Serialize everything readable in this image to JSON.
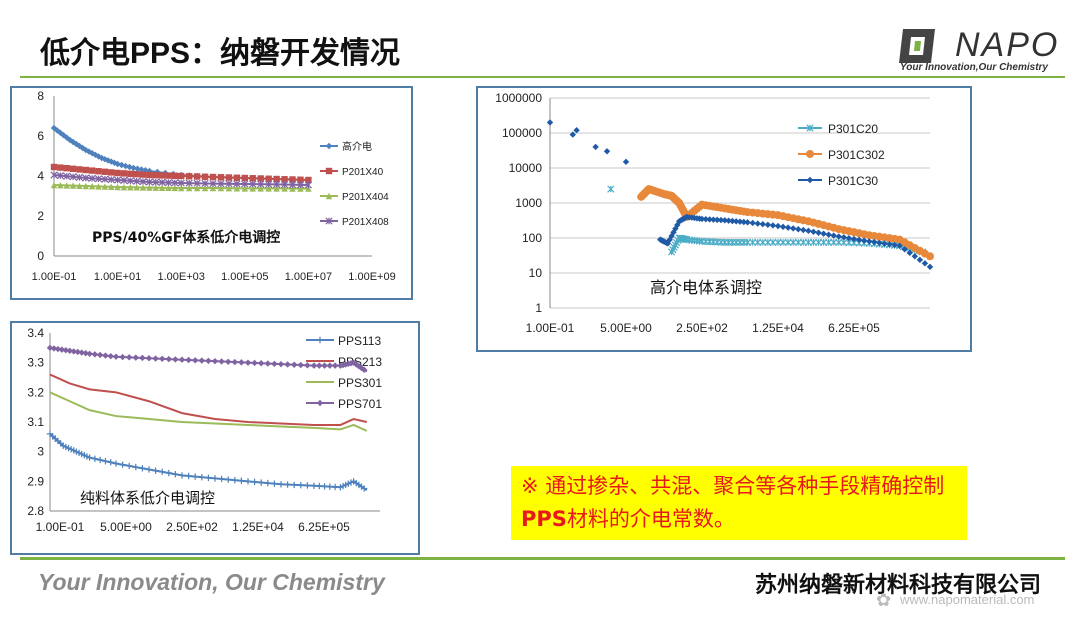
{
  "header": {
    "title": "低介电PPS：纳磐开发情况"
  },
  "logo": {
    "brand": "NAPO",
    "slogan": "Your Innovation,Our Chemistry",
    "color": "#444444"
  },
  "colors": {
    "accent_green": "#7cb342",
    "frame_blue": "#4f7da6",
    "note_bg": "#ffff00",
    "note_text": "#e8191d"
  },
  "chart_data": [
    {
      "type": "line",
      "title": "PPS/40%GF体系低介电调控",
      "xscale": "log",
      "x_ticks": [
        "1.00E-01",
        "1.00E+01",
        "1.00E+03",
        "1.00E+05",
        "1.00E+07",
        "1.00E+09"
      ],
      "y_ticks": [
        "0",
        "2",
        "4",
        "6",
        "8"
      ],
      "ylim": [
        0,
        8
      ],
      "xlim_log10": [
        -1,
        9
      ],
      "series": [
        {
          "name": "高介电",
          "color": "#4f81bd",
          "marker": "diamond",
          "x_log10": [
            -1,
            -0.5,
            0,
            0.5,
            1,
            1.5,
            2,
            3,
            4,
            5,
            6,
            7
          ],
          "y": [
            6.4,
            5.8,
            5.3,
            4.9,
            4.6,
            4.4,
            4.25,
            4.05,
            3.95,
            3.9,
            3.85,
            3.8
          ]
        },
        {
          "name": "P201X40",
          "color": "#c0504d",
          "marker": "square",
          "x_log10": [
            -1,
            0,
            1,
            2,
            3,
            4,
            5,
            6,
            7
          ],
          "y": [
            4.45,
            4.3,
            4.15,
            4.05,
            4.0,
            3.95,
            3.9,
            3.85,
            3.8
          ]
        },
        {
          "name": "P201X404",
          "color": "#9bbb59",
          "marker": "triangle",
          "x_log10": [
            -1,
            0,
            1,
            2,
            3,
            4,
            5,
            6,
            7
          ],
          "y": [
            3.55,
            3.5,
            3.45,
            3.42,
            3.4,
            3.4,
            3.38,
            3.38,
            3.37
          ]
        },
        {
          "name": "P201X408",
          "color": "#8064a2",
          "marker": "x",
          "x_log10": [
            -1,
            0,
            1,
            2,
            3,
            4,
            5,
            6,
            7
          ],
          "y": [
            4.05,
            3.9,
            3.8,
            3.7,
            3.65,
            3.62,
            3.6,
            3.58,
            3.55
          ]
        }
      ]
    },
    {
      "type": "scatter",
      "title": "高介电体系调控",
      "xscale": "log",
      "yscale": "log",
      "x_ticks": [
        "1.00E-01",
        "5.00E+00",
        "2.50E+02",
        "1.25E+04",
        "6.25E+05"
      ],
      "y_ticks": [
        "1",
        "10",
        "100",
        "1000",
        "10000",
        "100000",
        "1000000"
      ],
      "ylim": [
        1,
        1000000
      ],
      "series": [
        {
          "name": "P301C20",
          "color": "#4bacc6",
          "marker": "x",
          "x_idx": [
            0.8,
            1.6,
            1.7,
            1.8,
            2.0,
            2.3,
            2.6,
            3.0,
            3.4,
            3.8,
            4.2,
            4.6,
            4.9
          ],
          "y": [
            2500,
            40,
            100,
            90,
            80,
            75,
            75,
            75,
            75,
            75,
            70,
            60,
            40
          ]
        },
        {
          "name": "P301C302",
          "color": "#e8883a",
          "marker": "circle",
          "x_idx": [
            1.2,
            1.3,
            1.5,
            1.6,
            1.7,
            1.8,
            2.0,
            2.3,
            2.6,
            3.0,
            3.4,
            3.8,
            4.2,
            4.6,
            5.0
          ],
          "y": [
            1500,
            2500,
            1800,
            1600,
            1000,
            400,
            900,
            700,
            550,
            450,
            300,
            180,
            120,
            90,
            30
          ]
        },
        {
          "name": "P301C30",
          "color": "#1f5aa6",
          "marker": "diamond",
          "x_idx": [
            0,
            0.3,
            0.35,
            0.6,
            0.75,
            1.0,
            1.45,
            1.55,
            1.7,
            1.8,
            2.0,
            2.3,
            2.6,
            3.0,
            3.4,
            3.8,
            4.2,
            4.6,
            5.0
          ],
          "y": [
            200000,
            90000,
            120000,
            40000,
            30000,
            15000,
            90,
            70,
            300,
            400,
            350,
            320,
            280,
            220,
            160,
            110,
            80,
            60,
            15
          ]
        }
      ]
    },
    {
      "type": "line",
      "title": "纯料体系低介电调控",
      "x_ticks": [
        "1.00E-01",
        "5.00E+00",
        "2.50E+02",
        "1.25E+04",
        "6.25E+05"
      ],
      "y_ticks": [
        "2.8",
        "2.9",
        "3",
        "3.1",
        "3.2",
        "3.3",
        "3.4"
      ],
      "ylim": [
        2.8,
        3.4
      ],
      "series": [
        {
          "name": "PPS113",
          "color": "#4f81bd",
          "marker": "plus",
          "x_idx": [
            0,
            0.2,
            0.4,
            0.6,
            1.0,
            1.5,
            2.0,
            2.5,
            3.0,
            3.5,
            4.0,
            4.4,
            4.6,
            4.8
          ],
          "y": [
            3.06,
            3.02,
            3.0,
            2.98,
            2.96,
            2.94,
            2.92,
            2.91,
            2.9,
            2.89,
            2.885,
            2.88,
            2.9,
            2.87
          ]
        },
        {
          "name": "PPS213",
          "color": "#c0504d",
          "marker": "line",
          "x_idx": [
            0,
            0.3,
            0.6,
            1.0,
            1.5,
            2.0,
            2.5,
            3.0,
            3.5,
            4.0,
            4.4,
            4.6,
            4.8
          ],
          "y": [
            3.26,
            3.23,
            3.21,
            3.2,
            3.17,
            3.13,
            3.11,
            3.1,
            3.095,
            3.09,
            3.09,
            3.11,
            3.1
          ]
        },
        {
          "name": "PPS301",
          "color": "#9bbb59",
          "marker": "line",
          "x_idx": [
            0,
            0.3,
            0.6,
            1.0,
            1.5,
            2.0,
            2.5,
            3.0,
            3.5,
            4.0,
            4.4,
            4.6,
            4.8
          ],
          "y": [
            3.2,
            3.17,
            3.14,
            3.12,
            3.11,
            3.1,
            3.095,
            3.09,
            3.085,
            3.08,
            3.075,
            3.09,
            3.07
          ]
        },
        {
          "name": "PPS701",
          "color": "#8064a2",
          "marker": "diamond",
          "x_idx": [
            0,
            0.3,
            0.6,
            1.0,
            1.5,
            2.0,
            2.5,
            3.0,
            3.5,
            4.0,
            4.4,
            4.6,
            4.8
          ],
          "y": [
            3.35,
            3.34,
            3.33,
            3.32,
            3.315,
            3.31,
            3.305,
            3.3,
            3.295,
            3.29,
            3.29,
            3.3,
            3.27
          ]
        }
      ]
    }
  ],
  "note": {
    "prefix": "※ 通过掺杂、共混、聚合等各种手段精确控制",
    "bold": "PPS",
    "suffix": "材料的介电常数。"
  },
  "footer": {
    "slogan": "Your Innovation, Our Chemistry",
    "company": "苏州纳磐新材料科技有限公司",
    "watermark": "www.napomaterial.com"
  }
}
